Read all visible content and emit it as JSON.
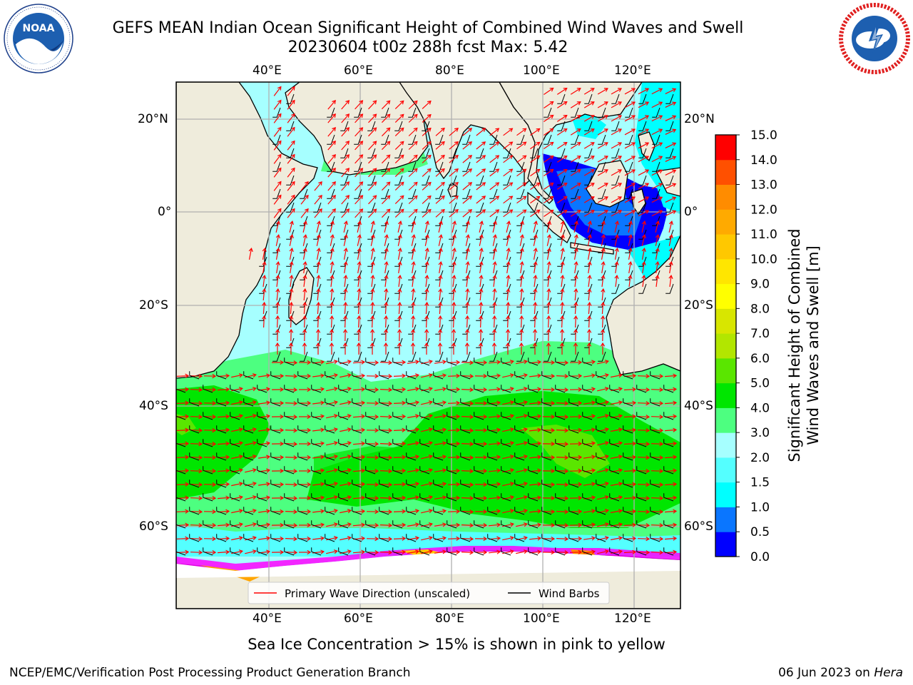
{
  "header": {
    "title_line1": "GEFS MEAN Indian Ocean Significant Height of Combined Wind Waves and Swell",
    "title_line2": "20230604 t00z 288h fcst   Max: 5.42"
  },
  "logos": {
    "left": {
      "icon": "noaa-logo-icon",
      "text": "NOAA",
      "ring_text": "NATIONAL OCEANIC AND ATMOSPHERIC ADMINISTRATION · U.S. DEPARTMENT OF COMMERCE"
    },
    "right": {
      "icon": "nws-logo-icon",
      "ring_text": "NATIONAL WEATHER SERVICE"
    }
  },
  "map": {
    "lon_ticks_top": [
      "40°E",
      "60°E",
      "80°E",
      "100°E",
      "120°E"
    ],
    "lon_ticks_bottom": [
      "40°E",
      "60°E",
      "80°E",
      "100°E",
      "120°E"
    ],
    "lat_ticks_left": [
      "20°N",
      "0°",
      "20°S",
      "40°S",
      "60°S"
    ],
    "lat_ticks_right": [
      "20°N",
      "0°",
      "20°S",
      "40°S",
      "60°S"
    ],
    "colors": {
      "land": "#efecdc",
      "ice_white": "#ffffff",
      "gridline": "#b0b0b0",
      "wave_arrow": "#ff0000",
      "wind_barb": "#000000"
    },
    "legend": {
      "items": [
        {
          "label": "Primary Wave Direction (unscaled)",
          "color": "#ff0000"
        },
        {
          "label": "Wind Barbs",
          "color": "#000000"
        }
      ]
    }
  },
  "colorbar": {
    "title_line1": "Significant Height of Combined",
    "title_line2": "Wind Waves and Swell [m]",
    "levels": [
      "0.0",
      "0.5",
      "1.0",
      "1.5",
      "2.0",
      "3.0",
      "4.0",
      "5.0",
      "6.0",
      "7.0",
      "8.0",
      "9.0",
      "10.0",
      "11.0",
      "12.0",
      "13.0",
      "14.0",
      "15.0"
    ],
    "colors": [
      "#0000ff",
      "#0a76ff",
      "#00ffff",
      "#54ffff",
      "#a6ffff",
      "#4dff80",
      "#00e600",
      "#5ae600",
      "#b2e600",
      "#d8e600",
      "#ffff00",
      "#ffe600",
      "#ffc800",
      "#ffaa00",
      "#ff8c00",
      "#ff5000",
      "#ff0000"
    ]
  },
  "footer": {
    "footnote": "Sea Ice Concentration > 15% is shown in pink to yellow",
    "credit_left": "NCEP/EMC/Verification Post Processing Product Generation Branch",
    "credit_right_prefix": "06 Jun 2023 on ",
    "credit_right_host": "Hera"
  }
}
